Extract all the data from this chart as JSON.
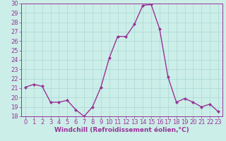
{
  "x": [
    0,
    1,
    2,
    3,
    4,
    5,
    6,
    7,
    8,
    9,
    10,
    11,
    12,
    13,
    14,
    15,
    16,
    17,
    18,
    19,
    20,
    21,
    22,
    23
  ],
  "y": [
    21.1,
    21.4,
    21.2,
    19.5,
    19.5,
    19.7,
    18.7,
    18.0,
    19.0,
    21.1,
    24.2,
    26.5,
    26.5,
    27.8,
    29.8,
    29.9,
    27.3,
    22.2,
    19.5,
    19.9,
    19.5,
    19.0,
    19.3,
    18.5
  ],
  "line_color": "#993399",
  "marker": "D",
  "marker_size": 2.0,
  "linewidth": 1.0,
  "background_color": "#cceee8",
  "grid_color": "#aad8d4",
  "xlabel": "Windchill (Refroidissement éolien,°C)",
  "xlabel_fontsize": 6.5,
  "tick_fontsize": 6.0,
  "ylim": [
    18,
    30
  ],
  "xlim": [
    -0.5,
    23.5
  ],
  "yticks": [
    18,
    19,
    20,
    21,
    22,
    23,
    24,
    25,
    26,
    27,
    28,
    29,
    30
  ],
  "xticks": [
    0,
    1,
    2,
    3,
    4,
    5,
    6,
    7,
    8,
    9,
    10,
    11,
    12,
    13,
    14,
    15,
    16,
    17,
    18,
    19,
    20,
    21,
    22,
    23
  ]
}
